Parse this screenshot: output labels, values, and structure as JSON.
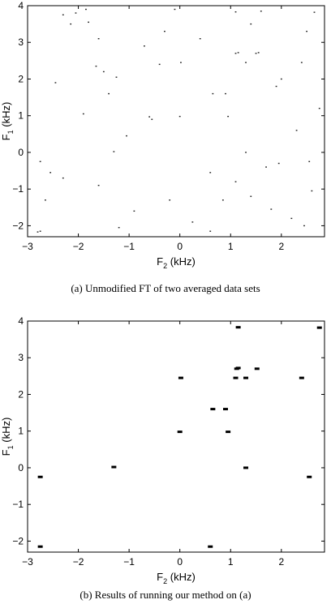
{
  "chart_data": [
    {
      "type": "scatter",
      "xlabel": "F",
      "xlabel_sub": "2",
      "xlabel_unit": " (kHz)",
      "ylabel": "F",
      "ylabel_sub": "1",
      "ylabel_unit": " (kHz)",
      "xlim": [
        -3,
        2.85
      ],
      "ylim": [
        -2.3,
        4
      ],
      "xticks": [
        -3,
        -2,
        -1,
        0,
        1,
        2
      ],
      "yticks": [
        -2,
        -1,
        0,
        1,
        2,
        3,
        4
      ],
      "caption": "(a) Unmodified FT of two averaged data sets",
      "grid": false,
      "points": [
        [
          -2.75,
          -0.25
        ],
        [
          -2.75,
          -2.15
        ],
        [
          -2.8,
          -2.17
        ],
        [
          -2.3,
          3.75
        ],
        [
          -2.15,
          3.5
        ],
        [
          -2.05,
          3.8
        ],
        [
          -1.85,
          3.9
        ],
        [
          -1.8,
          3.55
        ],
        [
          -1.6,
          3.1
        ],
        [
          -1.65,
          2.35
        ],
        [
          -1.5,
          2.2
        ],
        [
          -1.4,
          1.6
        ],
        [
          -1.3,
          0.02
        ],
        [
          -1.25,
          2.05
        ],
        [
          -0.6,
          0.97
        ],
        [
          -0.55,
          0.9
        ],
        [
          -0.4,
          2.4
        ],
        [
          -0.1,
          3.9
        ],
        [
          0.02,
          2.45
        ],
        [
          0.0,
          0.98
        ],
        [
          0.6,
          -2.15
        ],
        [
          0.65,
          1.6
        ],
        [
          0.9,
          1.6
        ],
        [
          0.95,
          0.98
        ],
        [
          1.1,
          3.83
        ],
        [
          1.1,
          2.7
        ],
        [
          1.15,
          2.72
        ],
        [
          1.3,
          2.45
        ],
        [
          1.3,
          0.0
        ],
        [
          1.5,
          2.7
        ],
        [
          1.55,
          2.72
        ],
        [
          2.4,
          2.45
        ],
        [
          2.55,
          -0.25
        ],
        [
          2.65,
          3.82
        ],
        [
          2.5,
          3.3
        ],
        [
          1.6,
          3.85
        ],
        [
          1.9,
          1.8
        ],
        [
          2.3,
          0.6
        ],
        [
          2.6,
          -1.05
        ],
        [
          2.2,
          -1.8
        ],
        [
          1.95,
          -0.3
        ],
        [
          1.7,
          -0.4
        ],
        [
          1.4,
          -1.2
        ],
        [
          1.1,
          -0.8
        ],
        [
          0.6,
          -0.55
        ],
        [
          0.25,
          -1.9
        ],
        [
          -0.2,
          -1.3
        ],
        [
          -0.9,
          -1.6
        ],
        [
          -1.6,
          -0.9
        ],
        [
          -2.3,
          -0.7
        ],
        [
          -2.65,
          -1.3
        ],
        [
          -2.55,
          -0.55
        ],
        [
          -1.05,
          0.45
        ],
        [
          -0.3,
          3.3
        ],
        [
          0.4,
          3.1
        ],
        [
          1.4,
          3.5
        ],
        [
          2.0,
          2.0
        ],
        [
          2.75,
          1.2
        ],
        [
          -1.9,
          1.05
        ],
        [
          -2.45,
          1.9
        ],
        [
          0.85,
          -1.3
        ],
        [
          1.8,
          -1.55
        ],
        [
          2.45,
          -2.0
        ],
        [
          -1.2,
          -2.05
        ],
        [
          -0.7,
          2.9
        ]
      ]
    },
    {
      "type": "scatter",
      "xlabel": "F",
      "xlabel_sub": "2",
      "xlabel_unit": " (kHz)",
      "ylabel": "F",
      "ylabel_sub": "1",
      "ylabel_unit": " (kHz)",
      "xlim": [
        -3,
        2.85
      ],
      "ylim": [
        -2.3,
        4
      ],
      "xticks": [
        -3,
        -2,
        -1,
        0,
        1,
        2
      ],
      "yticks": [
        -2,
        -1,
        0,
        1,
        2,
        3,
        4
      ],
      "caption": "(b) Results of running our method on (a)",
      "grid": false,
      "points": [
        [
          -2.75,
          -0.25
        ],
        [
          -2.75,
          -2.15
        ],
        [
          -1.3,
          0.02
        ],
        [
          0.02,
          2.45
        ],
        [
          0.0,
          0.98
        ],
        [
          0.6,
          -2.15
        ],
        [
          0.65,
          1.6
        ],
        [
          0.9,
          1.6
        ],
        [
          0.95,
          0.98
        ],
        [
          1.15,
          3.83
        ],
        [
          1.12,
          2.7
        ],
        [
          1.15,
          2.72
        ],
        [
          1.1,
          2.45
        ],
        [
          1.3,
          2.45
        ],
        [
          1.3,
          0.0
        ],
        [
          1.52,
          2.7
        ],
        [
          2.4,
          2.45
        ],
        [
          2.55,
          -0.25
        ],
        [
          2.75,
          3.82
        ]
      ]
    }
  ]
}
